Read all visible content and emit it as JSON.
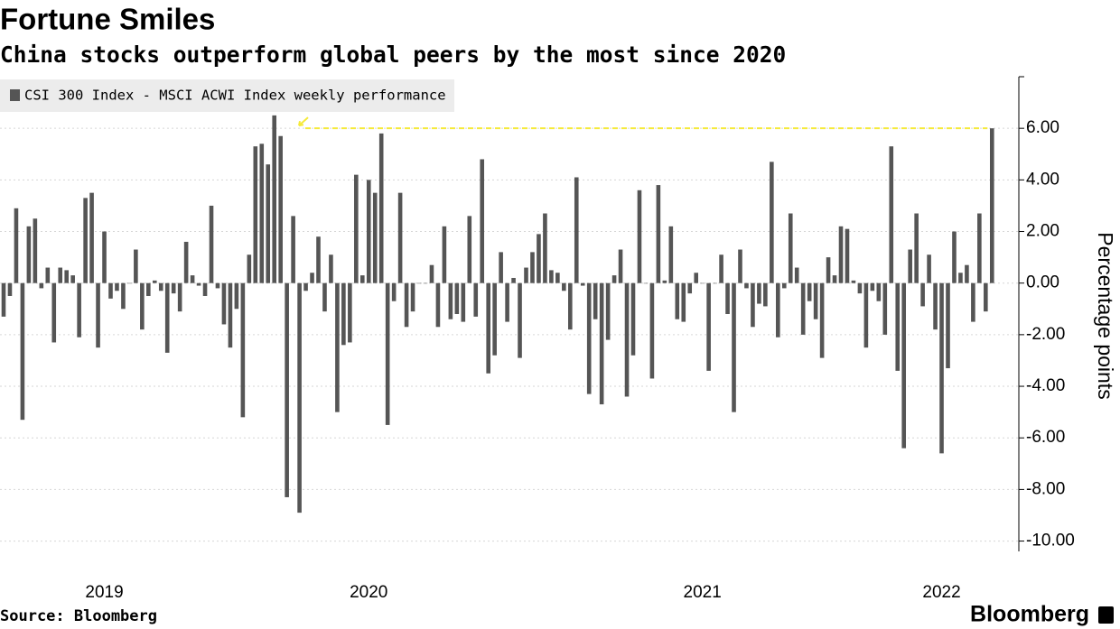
{
  "chart_data": {
    "type": "bar",
    "title": "Fortune Smiles",
    "subtitle": "China stocks outperform global peers by the most since 2020",
    "source": "Source: Bloomberg",
    "brand": "Bloomberg",
    "y_axis_label": "Percentage points",
    "categories": [
      null,
      null,
      null,
      null,
      null,
      null,
      null,
      null,
      null,
      null,
      null,
      null,
      null,
      null,
      null,
      null,
      "2019",
      null,
      null,
      null,
      null,
      null,
      null,
      null,
      null,
      null,
      null,
      null,
      null,
      null,
      null,
      null,
      null,
      null,
      null,
      null,
      null,
      null,
      null,
      null,
      null,
      null,
      null,
      null,
      null,
      null,
      null,
      null,
      null,
      null,
      null,
      null,
      null,
      null,
      null,
      null,
      null,
      null,
      "2020",
      null,
      null,
      null,
      null,
      null,
      null,
      null,
      null,
      null,
      null,
      null,
      null,
      null,
      null,
      null,
      null,
      null,
      null,
      null,
      null,
      null,
      null,
      null,
      null,
      null,
      null,
      null,
      null,
      null,
      null,
      null,
      null,
      null,
      null,
      null,
      null,
      null,
      null,
      null,
      null,
      null,
      null,
      null,
      null,
      null,
      null,
      null,
      null,
      null,
      null,
      null,
      null,
      "2021",
      null,
      null,
      null,
      null,
      null,
      null,
      null,
      null,
      null,
      null,
      null,
      null,
      null,
      null,
      null,
      null,
      null,
      null,
      null,
      null,
      null,
      null,
      null,
      null,
      null,
      null,
      null,
      null,
      null,
      null,
      null,
      null,
      null,
      null,
      null,
      null,
      null,
      "2022",
      null,
      null,
      null,
      null,
      null,
      null,
      null,
      null
    ],
    "series": [
      {
        "name": "CSI 300 Index - MSCI ACWI Index weekly performance",
        "color": "#555555",
        "values": [
          -1.3,
          -0.5,
          2.9,
          -5.3,
          2.2,
          2.5,
          -0.2,
          0.6,
          -2.3,
          0.6,
          0.5,
          0.3,
          -2.1,
          3.3,
          3.5,
          -2.5,
          2.0,
          -0.6,
          -0.3,
          -1.0,
          0.0,
          1.3,
          -1.8,
          -0.5,
          0.1,
          -0.3,
          -2.7,
          -0.4,
          -1.1,
          1.6,
          0.3,
          -0.1,
          -0.5,
          3.0,
          -0.2,
          -1.6,
          -2.5,
          -1.0,
          -5.2,
          1.1,
          5.3,
          5.4,
          4.6,
          6.5,
          5.7,
          -8.3,
          2.6,
          -8.9,
          -0.3,
          0.4,
          1.8,
          -1.1,
          1.1,
          -5.0,
          -2.4,
          -2.3,
          4.2,
          0.3,
          4.0,
          3.5,
          5.8,
          -5.5,
          -0.7,
          3.5,
          -1.7,
          -1.1,
          0.0,
          0.0,
          0.7,
          -1.7,
          2.2,
          -1.4,
          -1.2,
          -1.5,
          2.6,
          -1.3,
          4.8,
          -3.5,
          -2.8,
          1.2,
          -1.5,
          0.2,
          -2.9,
          0.6,
          1.2,
          1.9,
          2.7,
          0.5,
          0.4,
          -0.3,
          -1.8,
          4.1,
          -0.1,
          -4.3,
          -1.4,
          -4.7,
          -2.2,
          0.3,
          1.3,
          -4.4,
          -2.8,
          3.6,
          0.0,
          -3.7,
          3.8,
          0.1,
          2.2,
          -1.4,
          -1.5,
          -0.4,
          0.4,
          0.0,
          -3.4,
          0.0,
          1.1,
          -1.2,
          -5.0,
          1.3,
          -0.2,
          -1.7,
          -0.8,
          -0.9,
          4.7,
          -2.1,
          -0.2,
          2.7,
          0.6,
          -2.0,
          -0.7,
          -1.4,
          -2.9,
          1.0,
          0.3,
          2.2,
          2.1,
          0.1,
          -0.4,
          -2.5,
          -0.3,
          -0.7,
          -2.0,
          5.3,
          -3.4,
          -6.4,
          1.3,
          2.7,
          -0.9,
          1.1,
          -1.8,
          -6.6,
          -3.3,
          2.0,
          0.4,
          0.7,
          -1.5,
          2.7,
          -1.1,
          6.0
        ]
      }
    ],
    "ylim": [
      -10.4,
      8
    ],
    "yticks": [
      {
        "value": 6,
        "label": "6.00"
      },
      {
        "value": 4,
        "label": "4.00"
      },
      {
        "value": 2,
        "label": "2.00"
      },
      {
        "value": 0,
        "label": "0.00"
      },
      {
        "value": -2,
        "label": "-2.00"
      },
      {
        "value": -4,
        "label": "-4.00"
      },
      {
        "value": -6,
        "label": "-6.00"
      },
      {
        "value": -8,
        "label": "-8.00"
      },
      {
        "value": -10,
        "label": "-10.00"
      }
    ],
    "grid": true,
    "legend": "top-left",
    "highlight_color": "#f5ea3a"
  }
}
